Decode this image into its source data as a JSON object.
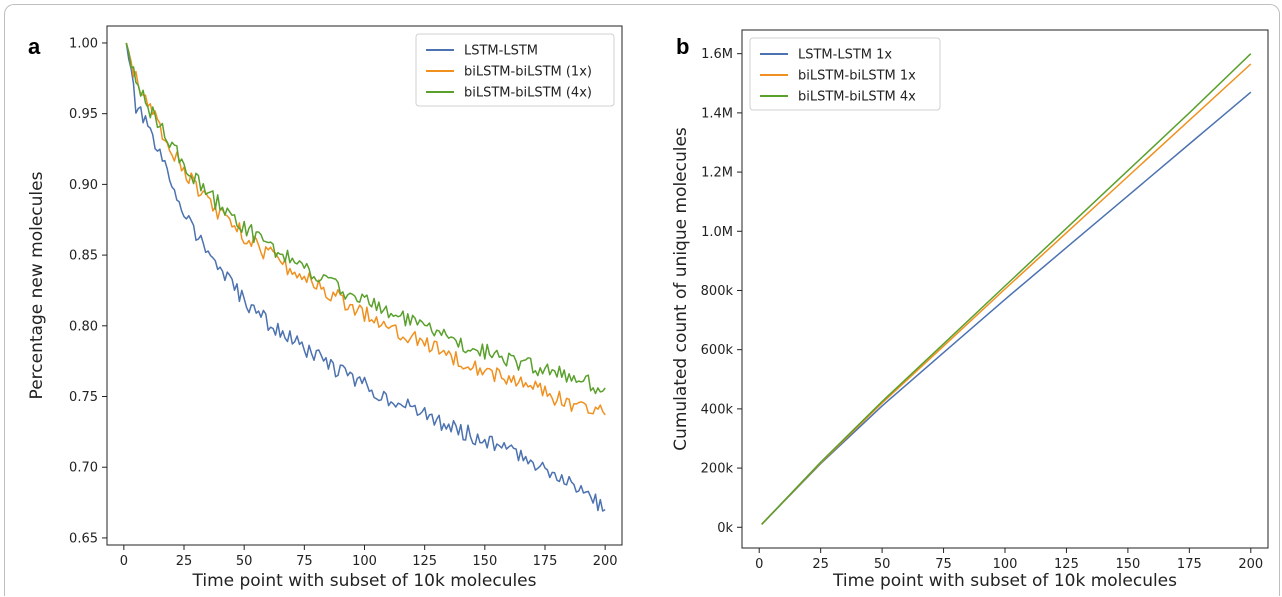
{
  "chart_data": [
    {
      "type": "line",
      "panel_label": "a",
      "xlabel": "Time point with subset of 10k molecules",
      "ylabel": "Percentage new molecules",
      "xlim": [
        -7,
        207
      ],
      "ylim": [
        0.645,
        1.012
      ],
      "xticks": [
        0,
        25,
        50,
        75,
        100,
        125,
        150,
        175,
        200
      ],
      "yticks": [
        0.65,
        0.7,
        0.75,
        0.8,
        0.85,
        0.9,
        0.95,
        1.0
      ],
      "ytick_labels": [
        "0.65",
        "0.70",
        "0.75",
        "0.80",
        "0.85",
        "0.90",
        "0.95",
        "1.00"
      ],
      "legend_position": "top-right",
      "grid": false,
      "series": [
        {
          "name": "LSTM-LSTM",
          "color": "#4c72b0",
          "x": [
            1,
            5,
            10,
            15,
            20,
            25,
            30,
            35,
            40,
            45,
            50,
            55,
            60,
            65,
            70,
            75,
            80,
            85,
            90,
            95,
            100,
            110,
            120,
            130,
            140,
            150,
            160,
            170,
            180,
            190,
            200
          ],
          "y": [
            1.0,
            0.955,
            0.94,
            0.92,
            0.9,
            0.882,
            0.865,
            0.852,
            0.84,
            0.828,
            0.818,
            0.81,
            0.802,
            0.796,
            0.79,
            0.784,
            0.778,
            0.773,
            0.768,
            0.763,
            0.758,
            0.749,
            0.741,
            0.733,
            0.726,
            0.719,
            0.712,
            0.704,
            0.695,
            0.685,
            0.67
          ]
        },
        {
          "name": "biLSTM-biLSTM (1x)",
          "color": "#f0911f",
          "x": [
            1,
            5,
            10,
            15,
            20,
            25,
            30,
            35,
            40,
            45,
            50,
            55,
            60,
            65,
            70,
            75,
            80,
            85,
            90,
            95,
            100,
            110,
            120,
            130,
            140,
            150,
            160,
            170,
            180,
            190,
            200
          ],
          "y": [
            1.0,
            0.975,
            0.955,
            0.94,
            0.925,
            0.91,
            0.898,
            0.888,
            0.879,
            0.871,
            0.864,
            0.857,
            0.851,
            0.845,
            0.839,
            0.834,
            0.829,
            0.824,
            0.819,
            0.814,
            0.809,
            0.8,
            0.792,
            0.784,
            0.776,
            0.769,
            0.762,
            0.756,
            0.749,
            0.743,
            0.737
          ]
        },
        {
          "name": "biLSTM-biLSTM (4x)",
          "color": "#5aa02c",
          "x": [
            1,
            5,
            10,
            15,
            20,
            25,
            30,
            35,
            40,
            45,
            50,
            55,
            60,
            65,
            70,
            75,
            80,
            85,
            90,
            95,
            100,
            110,
            120,
            130,
            140,
            150,
            160,
            170,
            180,
            190,
            200
          ],
          "y": [
            1.0,
            0.975,
            0.955,
            0.94,
            0.927,
            0.914,
            0.903,
            0.893,
            0.885,
            0.877,
            0.87,
            0.863,
            0.857,
            0.851,
            0.846,
            0.841,
            0.836,
            0.831,
            0.826,
            0.822,
            0.818,
            0.81,
            0.802,
            0.795,
            0.788,
            0.782,
            0.776,
            0.771,
            0.766,
            0.761,
            0.756
          ]
        }
      ]
    },
    {
      "type": "line",
      "panel_label": "b",
      "xlabel": "Time point with subset of 10k molecules",
      "ylabel": "Cumulated count of unique molecules",
      "xlim": [
        -7,
        207
      ],
      "ylim": [
        -70000,
        1680000
      ],
      "xticks": [
        0,
        25,
        50,
        75,
        100,
        125,
        150,
        175,
        200
      ],
      "yticks": [
        0,
        200000,
        400000,
        600000,
        800000,
        1000000,
        1200000,
        1400000,
        1600000
      ],
      "ytick_labels": [
        "0k",
        "200k",
        "400k",
        "600k",
        "800k",
        "1.0M",
        "1.2M",
        "1.4M",
        "1.6M"
      ],
      "legend_position": "top-left",
      "grid": false,
      "series": [
        {
          "name": "LSTM-LSTM 1x",
          "color": "#4c72b0",
          "x": [
            1,
            25,
            50,
            75,
            100,
            125,
            150,
            175,
            200
          ],
          "y": [
            10000,
            215000,
            410000,
            590000,
            770000,
            945000,
            1120000,
            1295000,
            1470000
          ]
        },
        {
          "name": "biLSTM-biLSTM 1x",
          "color": "#f0911f",
          "x": [
            1,
            25,
            50,
            75,
            100,
            125,
            150,
            175,
            200
          ],
          "y": [
            10000,
            218000,
            420000,
            612000,
            805000,
            995000,
            1185000,
            1375000,
            1565000
          ]
        },
        {
          "name": "biLSTM-biLSTM 4x",
          "color": "#5aa02c",
          "x": [
            1,
            25,
            50,
            75,
            100,
            125,
            150,
            175,
            200
          ],
          "y": [
            10000,
            220000,
            425000,
            620000,
            815000,
            1010000,
            1205000,
            1400000,
            1600000
          ]
        }
      ]
    }
  ]
}
